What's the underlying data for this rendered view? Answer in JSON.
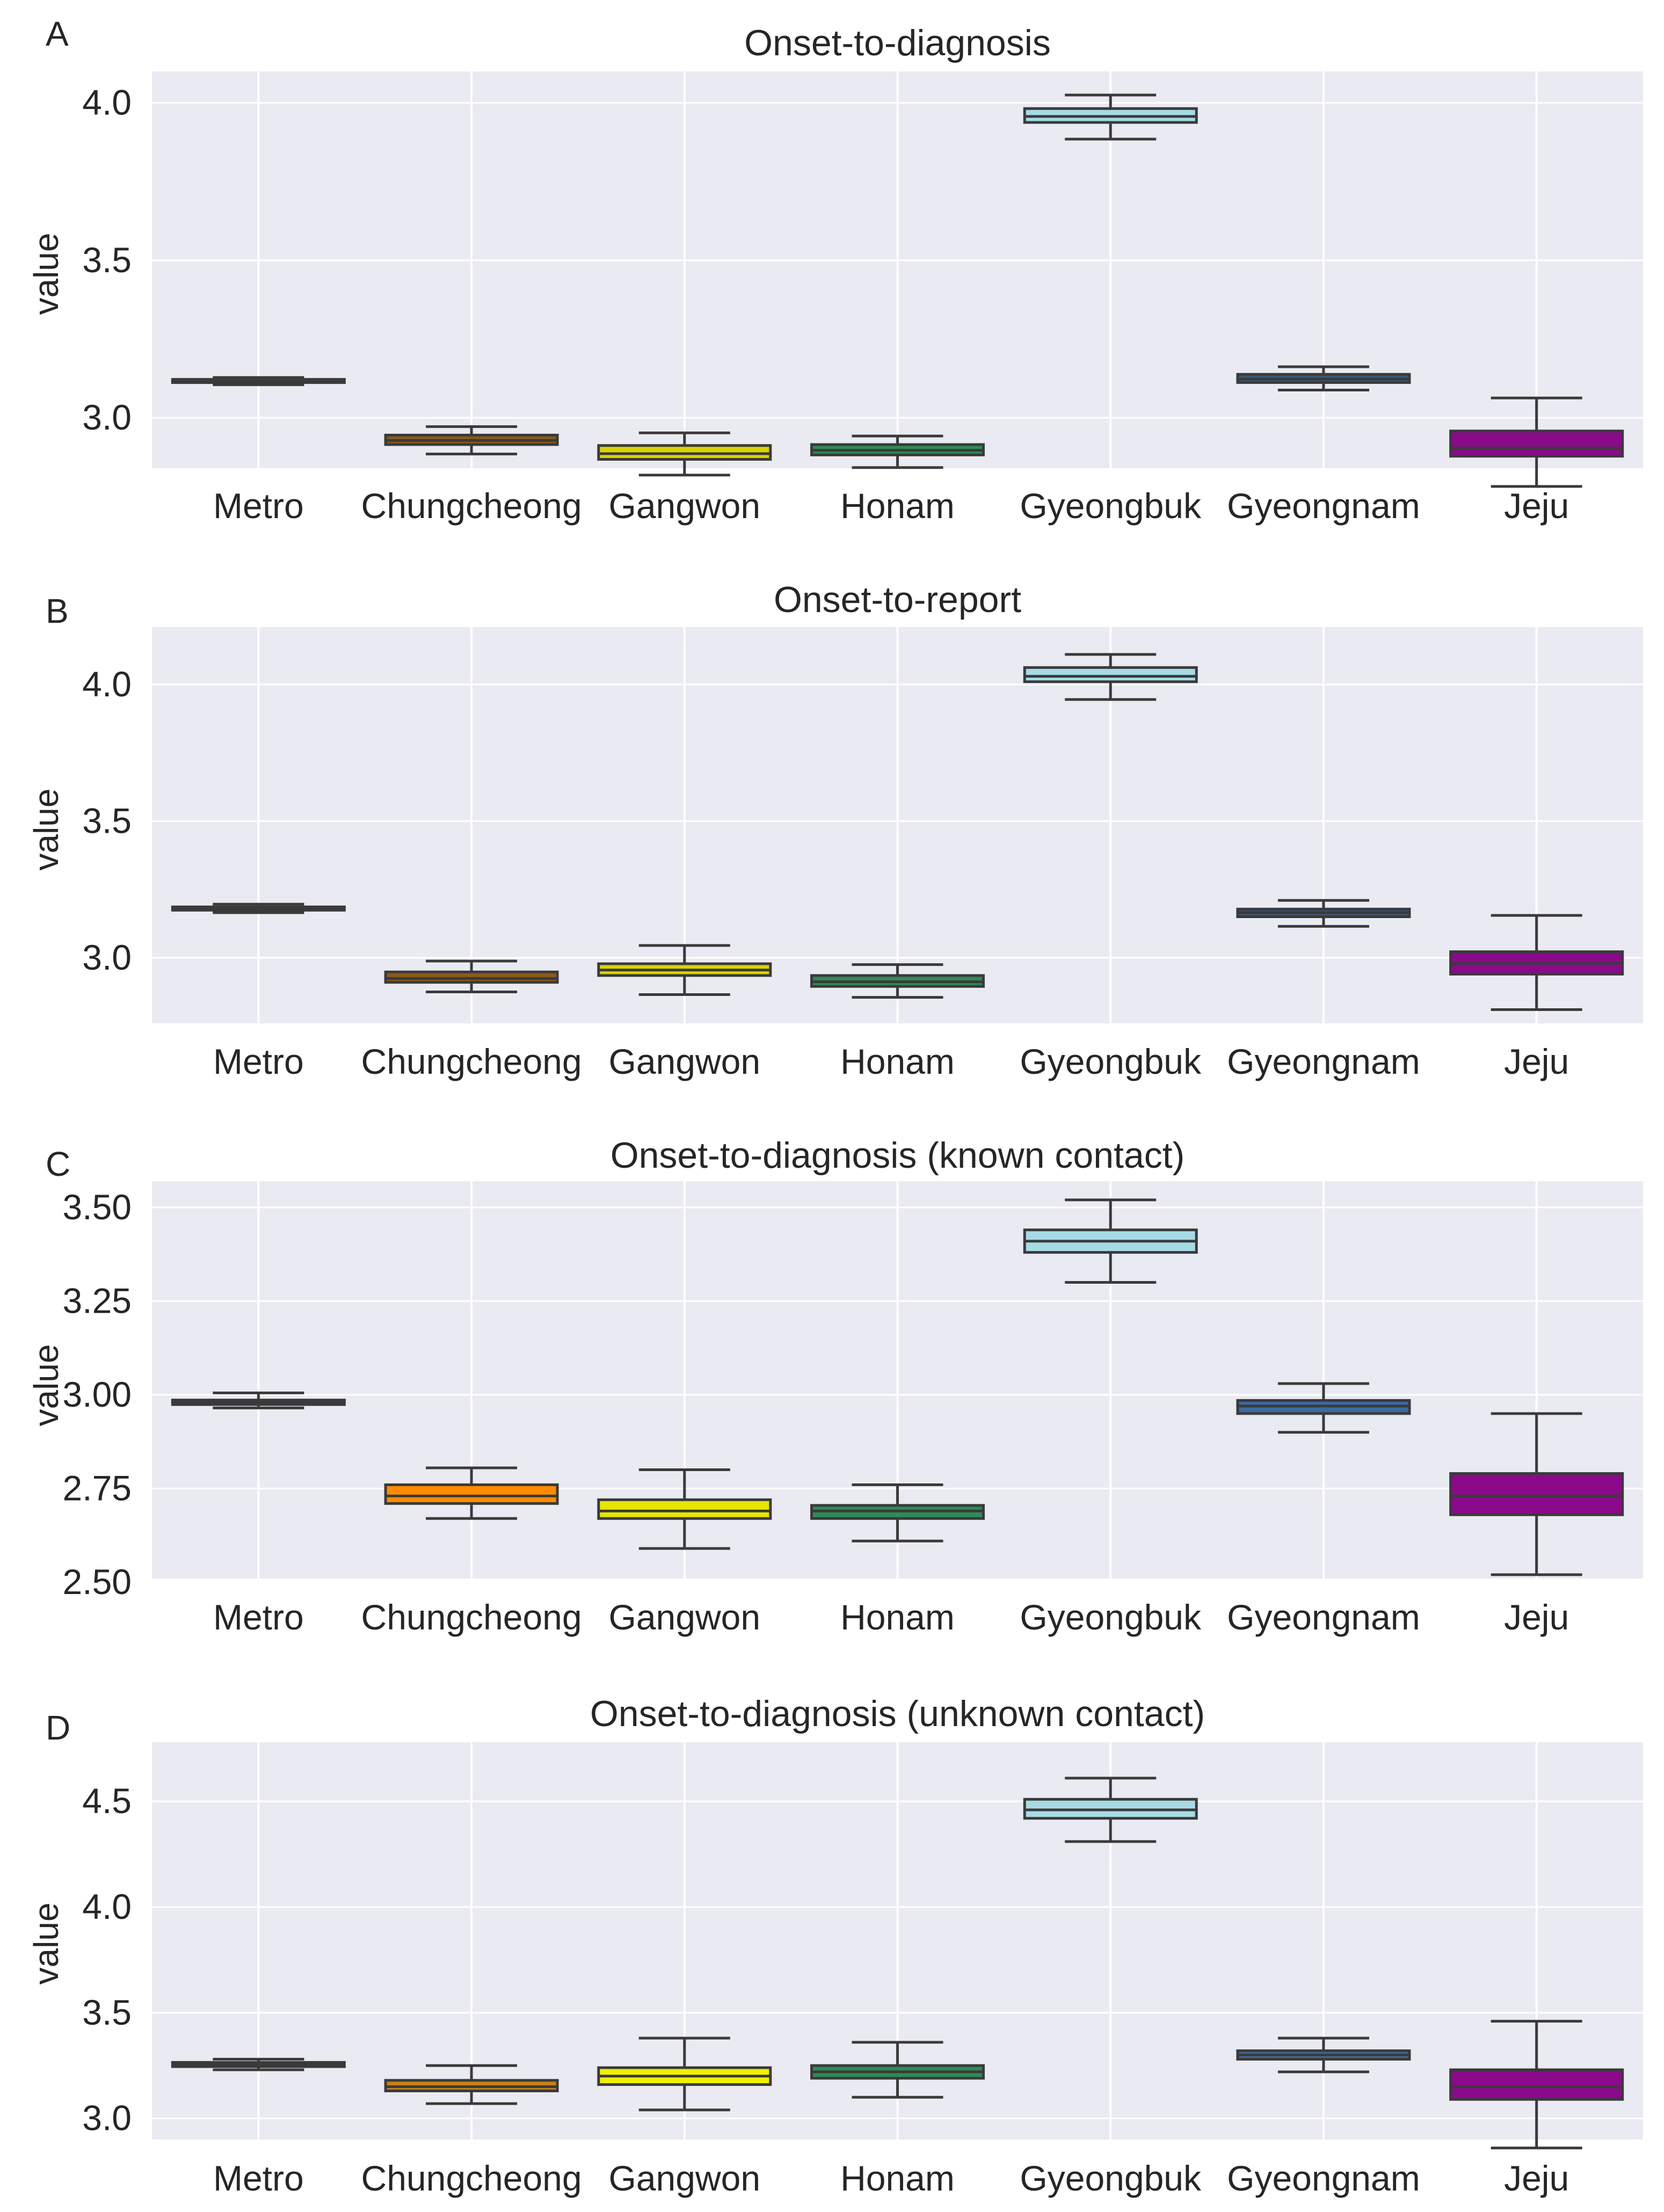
{
  "chart_data": [
    {
      "panel": "A",
      "type": "box",
      "title": "Onset-to-diagnosis",
      "xlabel": "",
      "ylabel": "value",
      "categories": [
        "Metro",
        "Chungcheong",
        "Gangwon",
        "Honam",
        "Gyeongbuk",
        "Gyeongnam",
        "Jeju"
      ],
      "yticks": [
        "3.0",
        "3.5",
        "4.0"
      ],
      "ylim": [
        2.84,
        4.1
      ],
      "grid": true,
      "boxes": [
        {
          "whisker_low": 3.105,
          "q1": 3.112,
          "median": 3.117,
          "q3": 3.122,
          "whisker_high": 3.128
        },
        {
          "whisker_low": 2.885,
          "q1": 2.915,
          "median": 2.928,
          "q3": 2.945,
          "whisker_high": 2.972
        },
        {
          "whisker_low": 2.818,
          "q1": 2.868,
          "median": 2.886,
          "q3": 2.912,
          "whisker_high": 2.952
        },
        {
          "whisker_low": 2.842,
          "q1": 2.882,
          "median": 2.897,
          "q3": 2.915,
          "whisker_high": 2.942
        },
        {
          "whisker_low": 3.885,
          "q1": 3.938,
          "median": 3.957,
          "q3": 3.982,
          "whisker_high": 4.025
        },
        {
          "whisker_low": 3.088,
          "q1": 3.112,
          "median": 3.123,
          "q3": 3.138,
          "whisker_high": 3.162
        },
        {
          "whisker_low": 2.782,
          "q1": 2.878,
          "median": 2.904,
          "q3": 2.958,
          "whisker_high": 3.063
        }
      ]
    },
    {
      "panel": "B",
      "type": "box",
      "title": "Onset-to-report",
      "xlabel": "",
      "ylabel": "value",
      "categories": [
        "Metro",
        "Chungcheong",
        "Gangwon",
        "Honam",
        "Gyeongbuk",
        "Gyeongnam",
        "Jeju"
      ],
      "yticks": [
        "3.0",
        "3.5",
        "4.0"
      ],
      "ylim": [
        2.76,
        4.21
      ],
      "grid": true,
      "boxes": [
        {
          "whisker_low": 3.165,
          "q1": 3.174,
          "median": 3.18,
          "q3": 3.186,
          "whisker_high": 3.196
        },
        {
          "whisker_low": 2.875,
          "q1": 2.91,
          "median": 2.924,
          "q3": 2.948,
          "whisker_high": 2.988
        },
        {
          "whisker_low": 2.865,
          "q1": 2.935,
          "median": 2.955,
          "q3": 2.978,
          "whisker_high": 3.045
        },
        {
          "whisker_low": 2.855,
          "q1": 2.895,
          "median": 2.912,
          "q3": 2.935,
          "whisker_high": 2.975
        },
        {
          "whisker_low": 3.945,
          "q1": 4.01,
          "median": 4.03,
          "q3": 4.062,
          "whisker_high": 4.11
        },
        {
          "whisker_low": 3.115,
          "q1": 3.15,
          "median": 3.165,
          "q3": 3.178,
          "whisker_high": 3.21
        },
        {
          "whisker_low": 2.81,
          "q1": 2.94,
          "median": 2.98,
          "q3": 3.022,
          "whisker_high": 3.155
        }
      ]
    },
    {
      "panel": "C",
      "type": "box",
      "title": "Onset-to-diagnosis (known contact)",
      "xlabel": "",
      "ylabel": "value",
      "categories": [
        "Metro",
        "Chungcheong",
        "Gangwon",
        "Honam",
        "Gyeongbuk",
        "Gyeongnam",
        "Jeju"
      ],
      "yticks": [
        "2.50",
        "2.75",
        "3.00",
        "3.25",
        "3.50"
      ],
      "ylim": [
        2.51,
        3.57
      ],
      "grid": true,
      "boxes": [
        {
          "whisker_low": 2.965,
          "q1": 2.974,
          "median": 2.98,
          "q3": 2.986,
          "whisker_high": 3.005
        },
        {
          "whisker_low": 2.67,
          "q1": 2.71,
          "median": 2.73,
          "q3": 2.76,
          "whisker_high": 2.805
        },
        {
          "whisker_low": 2.59,
          "q1": 2.67,
          "median": 2.69,
          "q3": 2.72,
          "whisker_high": 2.8
        },
        {
          "whisker_low": 2.61,
          "q1": 2.67,
          "median": 2.69,
          "q3": 2.705,
          "whisker_high": 2.76
        },
        {
          "whisker_low": 3.3,
          "q1": 3.38,
          "median": 3.41,
          "q3": 3.44,
          "whisker_high": 3.52
        },
        {
          "whisker_low": 2.9,
          "q1": 2.95,
          "median": 2.97,
          "q3": 2.985,
          "whisker_high": 3.03
        },
        {
          "whisker_low": 2.52,
          "q1": 2.68,
          "median": 2.73,
          "q3": 2.79,
          "whisker_high": 2.95
        }
      ]
    },
    {
      "panel": "D",
      "type": "box",
      "title": "Onset-to-diagnosis (unknown contact)",
      "xlabel": "",
      "ylabel": "value",
      "categories": [
        "Metro",
        "Chungcheong",
        "Gangwon",
        "Honam",
        "Gyeongbuk",
        "Gyeongnam",
        "Jeju"
      ],
      "yticks": [
        "3.0",
        "3.5",
        "4.0",
        "4.5"
      ],
      "ylim": [
        2.9,
        4.78
      ],
      "grid": true,
      "boxes": [
        {
          "whisker_low": 3.23,
          "q1": 3.245,
          "median": 3.255,
          "q3": 3.265,
          "whisker_high": 3.28
        },
        {
          "whisker_low": 3.07,
          "q1": 3.13,
          "median": 3.15,
          "q3": 3.18,
          "whisker_high": 3.25
        },
        {
          "whisker_low": 3.04,
          "q1": 3.16,
          "median": 3.2,
          "q3": 3.24,
          "whisker_high": 3.38
        },
        {
          "whisker_low": 3.1,
          "q1": 3.19,
          "median": 3.22,
          "q3": 3.25,
          "whisker_high": 3.36
        },
        {
          "whisker_low": 4.31,
          "q1": 4.42,
          "median": 4.46,
          "q3": 4.51,
          "whisker_high": 4.61
        },
        {
          "whisker_low": 3.22,
          "q1": 3.28,
          "median": 3.3,
          "q3": 3.32,
          "whisker_high": 3.38
        },
        {
          "whisker_low": 2.86,
          "q1": 3.09,
          "median": 3.15,
          "q3": 3.23,
          "whisker_high": 3.46
        }
      ]
    }
  ],
  "colors": {
    "background": "#eaeaf2",
    "grid": "#ffffff",
    "box_edge": "#3a3a3a",
    "text": "#262626",
    "categories": [
      "#2b2b2b",
      "#8b5a1a",
      "#d9d400",
      "#2e8b57",
      "#a6dbe6",
      "#3b5878",
      "#8b0a8b"
    ],
    "categories_panel_C": [
      "#2b2b2b",
      "#ff8c00",
      "#e6e600",
      "#2e8b57",
      "#a6dbe6",
      "#3d6aa0",
      "#8b0a8b"
    ],
    "categories_panel_D": [
      "#2b2b2b",
      "#c8821a",
      "#f0f000",
      "#2e8b57",
      "#a6dbe6",
      "#3d6aa0",
      "#8b0a8b"
    ]
  }
}
